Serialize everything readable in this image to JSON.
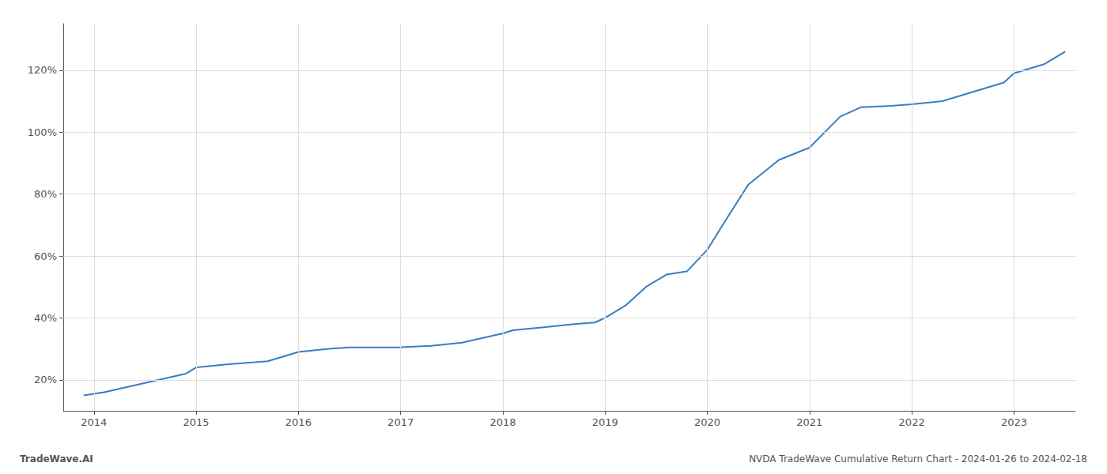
{
  "chart_data": {
    "type": "line",
    "title": "NVDA TradeWave Cumulative Return Chart - 2024-01-26 to 2024-02-18",
    "annotations": [
      "TradeWave.AI"
    ],
    "x": [
      2013.9,
      2014.1,
      2014.5,
      2014.9,
      2015.0,
      2015.3,
      2015.7,
      2016.0,
      2016.3,
      2016.5,
      2016.8,
      2017.0,
      2017.3,
      2017.6,
      2018.0,
      2018.1,
      2018.4,
      2018.7,
      2018.9,
      2019.0,
      2019.2,
      2019.4,
      2019.6,
      2019.8,
      2020.0,
      2020.15,
      2020.4,
      2020.7,
      2021.0,
      2021.3,
      2021.5,
      2021.8,
      2022.0,
      2022.3,
      2022.6,
      2022.9,
      2023.0,
      2023.3,
      2023.5
    ],
    "values": [
      15,
      16,
      19,
      22,
      24,
      25,
      26,
      29,
      30,
      30.5,
      30.5,
      30.5,
      31,
      32,
      35,
      36,
      37,
      38,
      38.5,
      40,
      44,
      50,
      54,
      55,
      62,
      70,
      83,
      91,
      95,
      105,
      108,
      108.5,
      109,
      110,
      113,
      116,
      119,
      122,
      126
    ],
    "color": "#3a7ebf",
    "xlim": [
      2013.7,
      2023.6
    ],
    "xticks": [
      2014,
      2015,
      2016,
      2017,
      2018,
      2019,
      2020,
      2021,
      2022,
      2023
    ],
    "ylim": [
      10,
      135
    ],
    "yticks": [
      {
        "value": 20,
        "label": "20%"
      },
      {
        "value": 40,
        "label": "40%"
      },
      {
        "value": 60,
        "label": "60%"
      },
      {
        "value": 80,
        "label": "80%"
      },
      {
        "value": 100,
        "label": "100%"
      },
      {
        "value": 120,
        "label": "120%"
      }
    ],
    "grid": true
  }
}
